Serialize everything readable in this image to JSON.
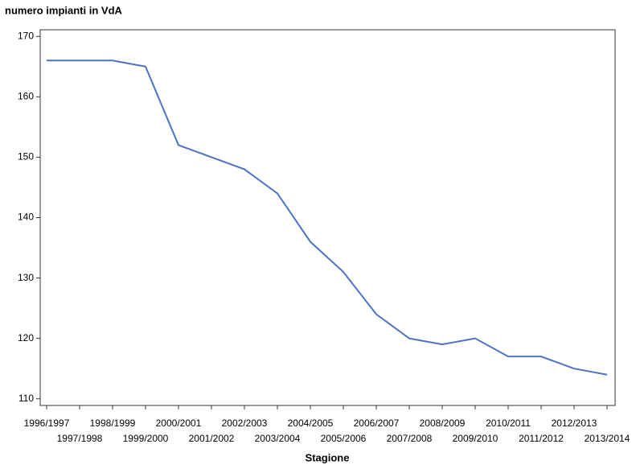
{
  "chart_data": {
    "type": "line",
    "title": "numero impianti in VdA",
    "x_label": "Stagione",
    "categories": [
      "1996/1997",
      "1997/1998",
      "1998/1999",
      "1999/2000",
      "2000/2001",
      "2001/2002",
      "2002/2003",
      "2003/2004",
      "2004/2005",
      "2005/2006",
      "2006/2007",
      "2007/2008",
      "2008/2009",
      "2009/2010",
      "2010/2011",
      "2011/2012",
      "2012/2013",
      "2013/2014"
    ],
    "series": [
      {
        "name": "numero impianti",
        "color": "#4f72c4",
        "values": [
          166,
          166,
          166,
          165,
          152,
          150,
          148,
          144,
          136,
          131,
          124,
          120,
          119,
          120,
          117,
          117,
          115,
          114
        ]
      }
    ],
    "ylim": [
      108.9,
      171.1
    ],
    "yticks": [
      110,
      120,
      130,
      140,
      150,
      160,
      170
    ],
    "grid": false
  }
}
